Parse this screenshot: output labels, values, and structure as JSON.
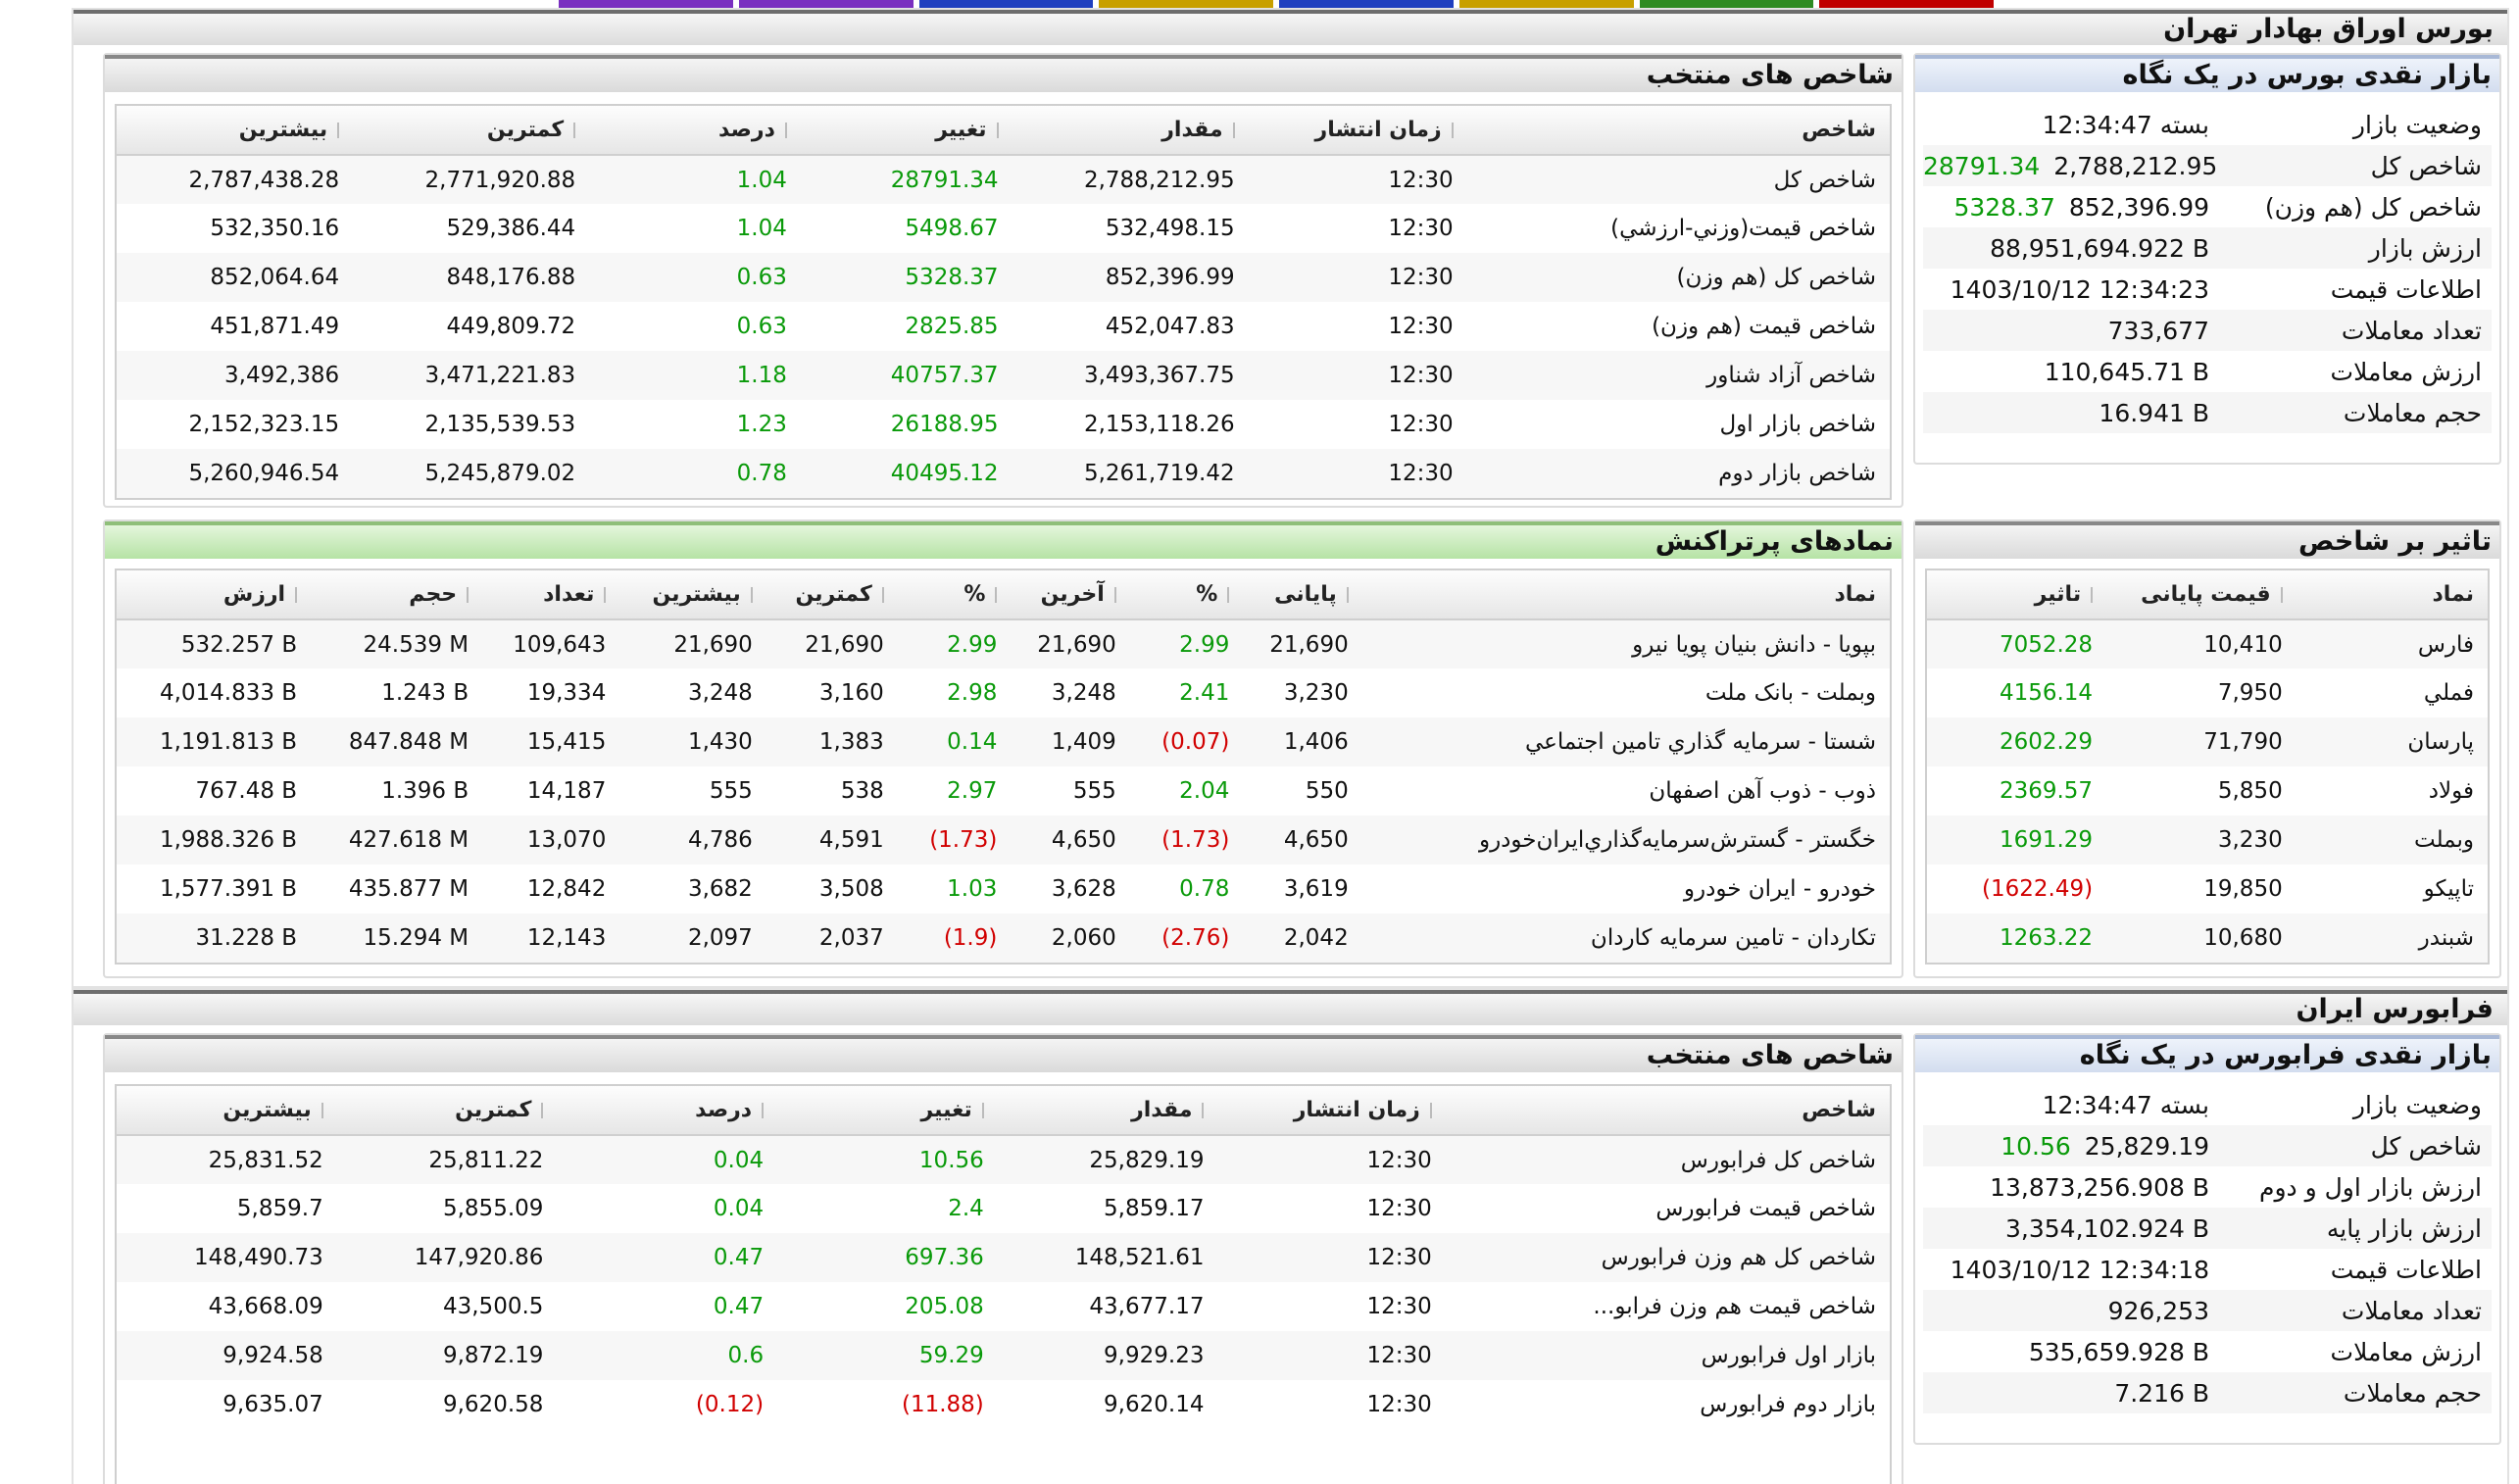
{
  "tse": {
    "title": "بورس اوراق بهادار تهران",
    "glance": {
      "title": "بازار نقدی بورس در یک نگاه",
      "rows": [
        {
          "label": "وضعیت بازار",
          "value": "بسته 12:34:47"
        },
        {
          "label": "شاخص کل",
          "value": "2,788,212.95",
          "change": "28791.34"
        },
        {
          "label": "شاخص کل (هم وزن)",
          "value": "852,396.99",
          "change": "5328.37"
        },
        {
          "label": "ارزش بازار",
          "value": "88,951,694.922 B"
        },
        {
          "label": "اطلاعات قیمت",
          "value": "1403/10/12 12:34:23"
        },
        {
          "label": "تعداد معاملات",
          "value": "733,677"
        },
        {
          "label": "ارزش معاملات",
          "value": "110,645.71 B"
        },
        {
          "label": "حجم معاملات",
          "value": "16.941 B"
        }
      ]
    },
    "indices": {
      "title": "شاخص های منتخب",
      "headers": [
        "شاخص",
        "زمان انتشار",
        "مقدار",
        "تغییر",
        "درصد",
        "کمترین",
        "بیشترین"
      ],
      "rows": [
        [
          "شاخص كل",
          "12:30",
          "2,788,212.95",
          "28791.34",
          "1.04",
          "2,771,920.88",
          "2,787,438.28"
        ],
        [
          "شاخص قيمت(وزني-ارزشي)",
          "12:30",
          "532,498.15",
          "5498.67",
          "1.04",
          "529,386.44",
          "532,350.16"
        ],
        [
          "شاخص كل (هم وزن)",
          "12:30",
          "852,396.99",
          "5328.37",
          "0.63",
          "848,176.88",
          "852,064.64"
        ],
        [
          "شاخص قيمت (هم وزن)",
          "12:30",
          "452,047.83",
          "2825.85",
          "0.63",
          "449,809.72",
          "451,871.49"
        ],
        [
          "شاخص آزاد شناور",
          "12:30",
          "3,493,367.75",
          "40757.37",
          "1.18",
          "3,471,221.83",
          "3,492,386"
        ],
        [
          "شاخص بازار اول",
          "12:30",
          "2,153,118.26",
          "26188.95",
          "1.23",
          "2,135,539.53",
          "2,152,323.15"
        ],
        [
          "شاخص بازار دوم",
          "12:30",
          "5,261,719.42",
          "40495.12",
          "0.78",
          "5,245,879.02",
          "5,260,946.54"
        ]
      ]
    },
    "impact": {
      "title": "تاثیر بر شاخص",
      "headers": [
        "نماد",
        "قیمت پایانی",
        "تاثیر"
      ],
      "rows": [
        [
          "فارس",
          "10,410",
          "7052.28"
        ],
        [
          "فملي",
          "7,950",
          "4156.14"
        ],
        [
          "پارسان",
          "71,790",
          "2602.29"
        ],
        [
          "فولاد",
          "5,850",
          "2369.57"
        ],
        [
          "وبملت",
          "3,230",
          "1691.29"
        ],
        [
          "تاپيكو",
          "19,850",
          "(1622.49)"
        ],
        [
          "شبندر",
          "10,680",
          "1263.22"
        ]
      ]
    },
    "active": {
      "title": "نمادهای پرتراکنش",
      "headers": [
        "نماد",
        "پایانی",
        "%",
        "آخرین",
        "%",
        "کمترین",
        "بیشترین",
        "تعداد",
        "حجم",
        "ارزش"
      ],
      "rows": [
        [
          "بپويا - دانش بنيان پويا نيرو",
          "21,690",
          "2.99",
          "21,690",
          "2.99",
          "21,690",
          "21,690",
          "109,643",
          "24.539 M",
          "532.257 B"
        ],
        [
          "وبملت - بانک ملت",
          "3,230",
          "2.41",
          "3,248",
          "2.98",
          "3,160",
          "3,248",
          "19,334",
          "1.243 B",
          "4,014.833 B"
        ],
        [
          "شستا - سرمايه گذاري تامين اجتماعي",
          "1,406",
          "(0.07)",
          "1,409",
          "0.14",
          "1,383",
          "1,430",
          "15,415",
          "847.848 M",
          "1,191.813 B"
        ],
        [
          "ذوب - ذوب آهن اصفهان",
          "550",
          "2.04",
          "555",
          "2.97",
          "538",
          "555",
          "14,187",
          "1.396 B",
          "767.48 B"
        ],
        [
          "خگستر - گسترش‌سرمايه‌گذاري‌ايران‌خودرو",
          "4,650",
          "(1.73)",
          "4,650",
          "(1.73)",
          "4,591",
          "4,786",
          "13,070",
          "427.618 M",
          "1,988.326 B"
        ],
        [
          "خودرو - ايران‌ خودرو",
          "3,619",
          "0.78",
          "3,628",
          "1.03",
          "3,508",
          "3,682",
          "12,842",
          "435.877 M",
          "1,577.391 B"
        ],
        [
          "تكاردان - تامين سرمايه كاردان",
          "2,042",
          "(2.76)",
          "2,060",
          "(1.9)",
          "2,037",
          "2,097",
          "12,143",
          "15.294 M",
          "31.228 B"
        ]
      ]
    }
  },
  "ifb": {
    "title": "فرابورس ایران",
    "glance": {
      "title": "بازار نقدی فرابورس در یک نگاه",
      "rows": [
        {
          "label": "وضعیت بازار",
          "value": "بسته 12:34:47"
        },
        {
          "label": "شاخص کل",
          "value": "25,829.19",
          "change": "10.56"
        },
        {
          "label": "ارزش بازار اول و دوم",
          "value": "13,873,256.908 B"
        },
        {
          "label": "ارزش بازار پایه",
          "value": "3,354,102.924 B"
        },
        {
          "label": "اطلاعات قیمت",
          "value": "1403/10/12 12:34:18"
        },
        {
          "label": "تعداد معاملات",
          "value": "926,253"
        },
        {
          "label": "ارزش معاملات",
          "value": "535,659.928 B"
        },
        {
          "label": "حجم معاملات",
          "value": "7.216 B"
        }
      ]
    },
    "indices": {
      "title": "شاخص های منتخب",
      "headers": [
        "شاخص",
        "زمان انتشار",
        "مقدار",
        "تغییر",
        "درصد",
        "کمترین",
        "بیشترین"
      ],
      "rows": [
        [
          "شاخص كل فرابورس",
          "12:30",
          "25,829.19",
          "10.56",
          "0.04",
          "25,811.22",
          "25,831.52"
        ],
        [
          "شاخص قيمت فرابورس",
          "12:30",
          "5,859.17",
          "2.4",
          "0.04",
          "5,855.09",
          "5,859.7"
        ],
        [
          "شاخص كل هم وزن فرابورس",
          "12:30",
          "148,521.61",
          "697.36",
          "0.47",
          "147,920.86",
          "148,490.73"
        ],
        [
          "شاخص قيمت هم وزن فرابو...",
          "12:30",
          "43,677.17",
          "205.08",
          "0.47",
          "43,500.5",
          "43,668.09"
        ],
        [
          "بازار اول فرابورس",
          "12:30",
          "9,929.23",
          "59.29",
          "0.6",
          "9,872.19",
          "9,924.58"
        ],
        [
          "بازار دوم فرابورس",
          "12:30",
          "9,620.14",
          "(11.88)",
          "(0.12)",
          "9,620.58",
          "9,635.07"
        ]
      ]
    }
  },
  "colors": {
    "positive": "#0a9a0a",
    "negative": "#d10000",
    "tabs": [
      "#c00000",
      "#2e8b22",
      "#c8a000",
      "#1f3fbf",
      "#c8a000",
      "#1f3fbf",
      "#7a2fc0",
      "#7a2fc0"
    ]
  }
}
